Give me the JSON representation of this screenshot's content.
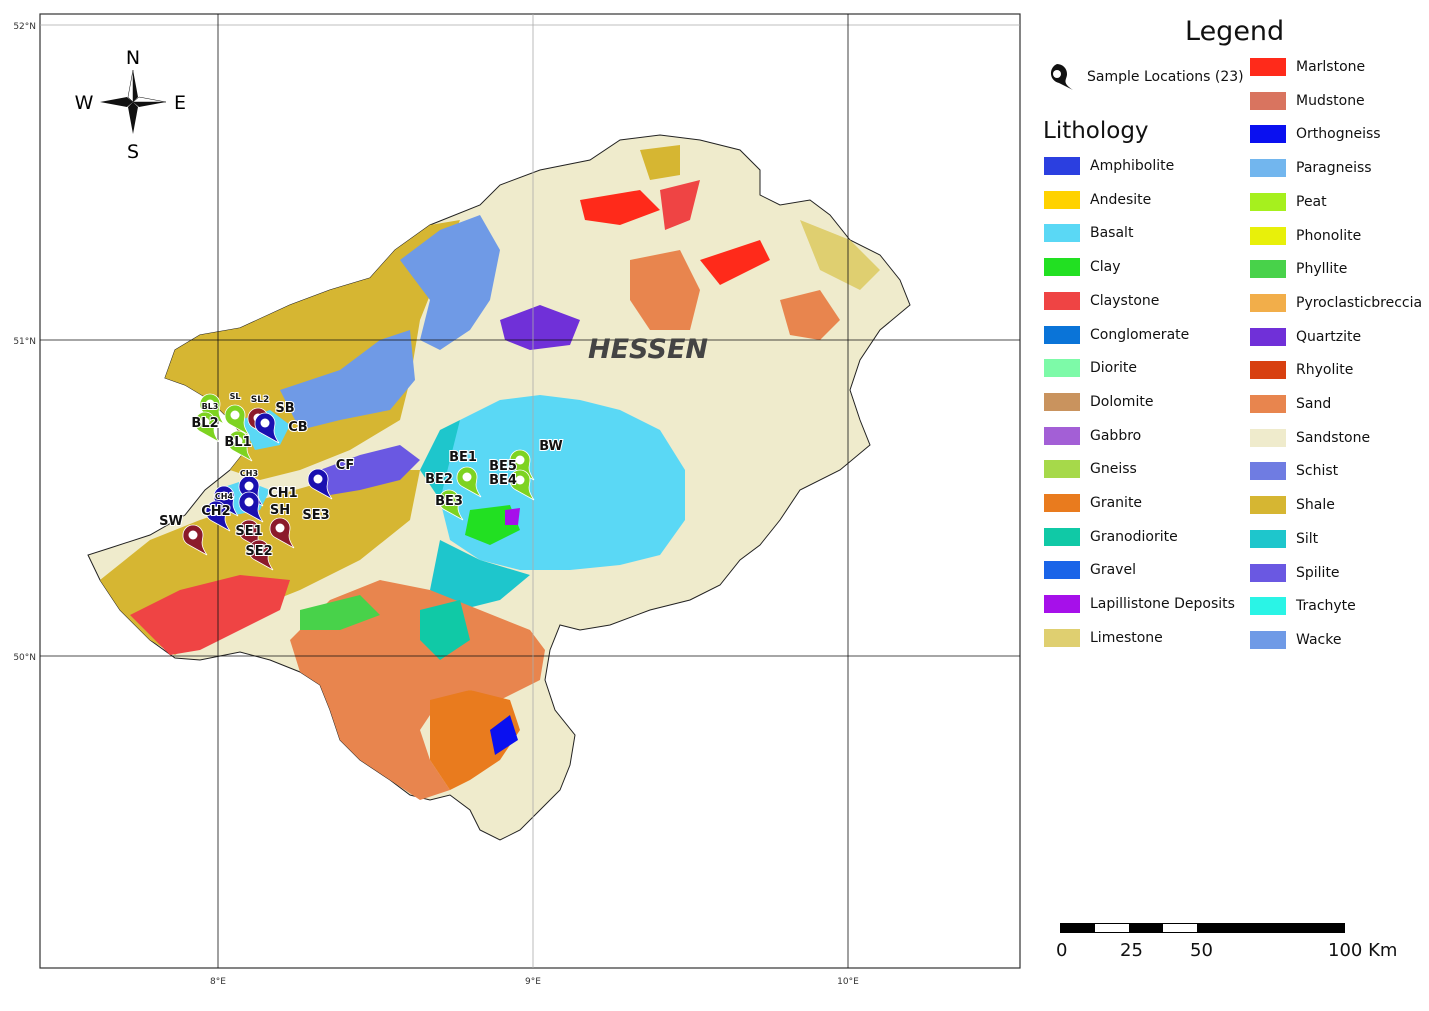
{
  "map": {
    "region_label": "HESSEN",
    "lat_labels": [
      "52°N",
      "51°N",
      "50°N"
    ],
    "lon_labels": [
      "8°E",
      "9°E",
      "10°E"
    ],
    "compass": {
      "n": "N",
      "s": "S",
      "e": "E",
      "w": "W"
    },
    "samples": [
      {
        "id": "BL3",
        "color": "#7ed321"
      },
      {
        "id": "SL",
        "color": "#7ed321"
      },
      {
        "id": "SL2",
        "color": "#8b1a2b"
      },
      {
        "id": "SB",
        "color": "#1a10b0"
      },
      {
        "id": "BL2",
        "color": "#7ed321"
      },
      {
        "id": "CB",
        "color": "#1a10b0"
      },
      {
        "id": "BL1",
        "color": "#7ed321"
      },
      {
        "id": "CF",
        "color": "#1a10b0"
      },
      {
        "id": "CH4",
        "color": "#1a10b0"
      },
      {
        "id": "CH3",
        "color": "#1a10b0"
      },
      {
        "id": "CH1",
        "color": "#1a10b0"
      },
      {
        "id": "CH2",
        "color": "#1a10b0"
      },
      {
        "id": "SH",
        "color": "#8b1a2b"
      },
      {
        "id": "SE3",
        "color": "#8b1a2b"
      },
      {
        "id": "SE1",
        "color": "#8b1a2b"
      },
      {
        "id": "SE2",
        "color": "#8b1a2b"
      },
      {
        "id": "SW",
        "color": "#8b1a2b"
      },
      {
        "id": "BE1",
        "color": "#7ed321"
      },
      {
        "id": "BE2",
        "color": "#7ed321"
      },
      {
        "id": "BE3",
        "color": "#7ed321"
      },
      {
        "id": "BE5",
        "color": "#7ed321"
      },
      {
        "id": "BE4",
        "color": "#7ed321"
      },
      {
        "id": "BW",
        "color": "#7ed321"
      }
    ]
  },
  "legend": {
    "title": "Legend",
    "samples_label": "Sample Locations (23)",
    "lithology_title": "Lithology",
    "items_left": [
      {
        "label": "Amphibolite",
        "color": "#2b3fe0"
      },
      {
        "label": "Andesite",
        "color": "#ffd200"
      },
      {
        "label": "Basalt",
        "color": "#5ad8f5"
      },
      {
        "label": "Clay",
        "color": "#22e022"
      },
      {
        "label": "Claystone",
        "color": "#ef4444"
      },
      {
        "label": "Conglomerate",
        "color": "#0a74d8"
      },
      {
        "label": "Diorite",
        "color": "#7dfaa8"
      },
      {
        "label": "Dolomite",
        "color": "#c9935e"
      },
      {
        "label": "Gabbro",
        "color": "#a35fd6"
      },
      {
        "label": "Gneiss",
        "color": "#a6d94a"
      },
      {
        "label": "Granite",
        "color": "#e97b1e"
      },
      {
        "label": "Granodiorite",
        "color": "#10c9a6"
      },
      {
        "label": "Gravel",
        "color": "#1a64e8"
      },
      {
        "label": "Lapillistone Deposits",
        "color": "#a610ea"
      },
      {
        "label": "Limestone",
        "color": "#dfcf70"
      }
    ],
    "items_right": [
      {
        "label": "Marlstone",
        "color": "#ff2a1a"
      },
      {
        "label": "Mudstone",
        "color": "#d9745f"
      },
      {
        "label": "Orthogneiss",
        "color": "#0a10f0"
      },
      {
        "label": "Paragneiss",
        "color": "#72b6ee"
      },
      {
        "label": "Peat",
        "color": "#a6f01e"
      },
      {
        "label": "Phonolite",
        "color": "#e8f00a"
      },
      {
        "label": "Phyllite",
        "color": "#48d24a"
      },
      {
        "label": "Pyroclasticbreccia",
        "color": "#f2ae4a"
      },
      {
        "label": "Quartzite",
        "color": "#7030d8"
      },
      {
        "label": "Rhyolite",
        "color": "#d84010"
      },
      {
        "label": "Sand",
        "color": "#e8854e"
      },
      {
        "label": "Sandstone",
        "color": "#efebcc"
      },
      {
        "label": "Schist",
        "color": "#6f7ce2"
      },
      {
        "label": "Shale",
        "color": "#d6b632"
      },
      {
        "label": "Silt",
        "color": "#1ec6cc"
      },
      {
        "label": "Spilite",
        "color": "#6a58e2"
      },
      {
        "label": "Trachyte",
        "color": "#2af4e6"
      },
      {
        "label": "Wacke",
        "color": "#6f9ae6"
      }
    ]
  },
  "scale": {
    "labels": [
      "0",
      "25",
      "50",
      "100 Km"
    ]
  }
}
